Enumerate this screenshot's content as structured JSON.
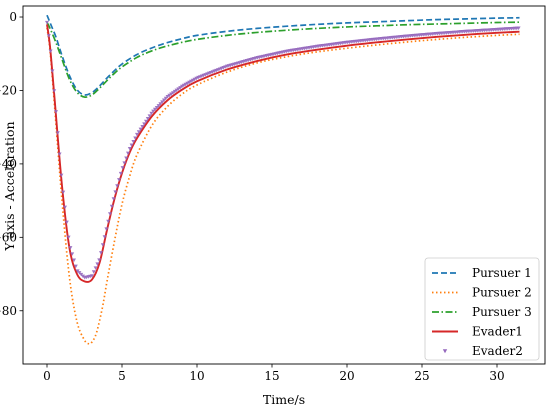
{
  "chart_data": {
    "type": "line",
    "title": "",
    "xlabel": "Time/s",
    "ylabel": "Y axis - Acceleration",
    "xlim": [
      -1.6,
      33.2
    ],
    "ylim": [
      -94.5,
      3
    ],
    "xticks": [
      0,
      5,
      10,
      15,
      20,
      25,
      30
    ],
    "yticks": [
      0,
      -20,
      -40,
      -60,
      -80
    ],
    "xtick_labels": [
      "0",
      "5",
      "10",
      "15",
      "20",
      "25",
      "30"
    ],
    "ytick_labels": [
      "0",
      "−20",
      "−40",
      "−60",
      "−80"
    ],
    "grid": false,
    "legend_position": "lower-right",
    "series": [
      {
        "name": "Pursuer 1",
        "color": "#1f77b4",
        "style": "dashed",
        "x": [
          0,
          0.1,
          0.3,
          0.6,
          1.0,
          1.5,
          2.0,
          2.5,
          3.0,
          3.5,
          4.0,
          4.5,
          5.0,
          6.0,
          7.0,
          8.0,
          9.0,
          10.0,
          12.0,
          14.0,
          16.0,
          18.0,
          20.0,
          22.0,
          24.0,
          26.0,
          28.0,
          30.0,
          31.5
        ],
        "y": [
          0.5,
          -0.5,
          -2.5,
          -5.5,
          -10.5,
          -16.0,
          -19.8,
          -21.2,
          -20.6,
          -18.8,
          -16.6,
          -14.6,
          -12.8,
          -10.2,
          -8.4,
          -7.0,
          -5.9,
          -5.0,
          -3.9,
          -3.1,
          -2.5,
          -2.0,
          -1.6,
          -1.3,
          -1.0,
          -0.7,
          -0.5,
          -0.3,
          -0.2
        ]
      },
      {
        "name": "Pursuer 2",
        "color": "#ff7f0e",
        "style": "dotted",
        "x": [
          0,
          0.2,
          0.5,
          1.0,
          1.5,
          2.0,
          2.5,
          2.8,
          3.0,
          3.3,
          3.7,
          4.0,
          4.5,
          5.0,
          5.5,
          6.0,
          7.0,
          8.0,
          9.0,
          10.0,
          12.0,
          14.0,
          16.0,
          18.0,
          20.0,
          22.0,
          24.0,
          26.0,
          28.0,
          30.0,
          31.5
        ],
        "y": [
          -3.0,
          -9.0,
          -24.0,
          -50.0,
          -71.0,
          -83.0,
          -88.0,
          -89.0,
          -88.5,
          -86.0,
          -79.0,
          -72.0,
          -61.0,
          -51.0,
          -43.5,
          -37.5,
          -29.5,
          -24.5,
          -21.0,
          -18.5,
          -15.0,
          -12.5,
          -10.8,
          -9.5,
          -8.5,
          -7.6,
          -6.8,
          -6.1,
          -5.5,
          -5.0,
          -4.7
        ]
      },
      {
        "name": "Pursuer 3",
        "color": "#2ca02c",
        "style": "dashdot",
        "x": [
          0,
          0.1,
          0.3,
          0.6,
          1.0,
          1.5,
          2.0,
          2.5,
          3.0,
          3.5,
          4.0,
          4.5,
          5.0,
          6.0,
          7.0,
          8.0,
          9.0,
          10.0,
          12.0,
          14.0,
          16.0,
          18.0,
          20.0,
          22.0,
          24.0,
          26.0,
          28.0,
          30.0,
          31.5
        ],
        "y": [
          -1.5,
          -2.2,
          -4.0,
          -7.0,
          -11.5,
          -17.0,
          -20.5,
          -21.8,
          -21.2,
          -19.4,
          -17.3,
          -15.3,
          -13.6,
          -11.0,
          -9.2,
          -7.9,
          -6.9,
          -6.1,
          -5.0,
          -4.2,
          -3.6,
          -3.1,
          -2.7,
          -2.4,
          -2.1,
          -1.9,
          -1.7,
          -1.5,
          -1.4
        ]
      },
      {
        "name": "Evader1",
        "color": "#d62728",
        "style": "solid",
        "x": [
          0,
          0.2,
          0.5,
          1.0,
          1.5,
          2.0,
          2.5,
          3.0,
          3.5,
          4.0,
          4.5,
          5.0,
          5.5,
          6.0,
          7.0,
          8.0,
          9.0,
          10.0,
          12.0,
          14.0,
          16.0,
          18.0,
          20.0,
          22.0,
          24.0,
          26.0,
          28.0,
          30.0,
          31.5
        ],
        "y": [
          -2.0,
          -8.0,
          -22.0,
          -46.0,
          -63.0,
          -70.0,
          -72.0,
          -71.5,
          -67.0,
          -58.0,
          -49.5,
          -42.5,
          -37.0,
          -33.0,
          -27.0,
          -22.8,
          -19.8,
          -17.5,
          -14.3,
          -12.0,
          -10.2,
          -8.9,
          -7.8,
          -6.9,
          -6.1,
          -5.4,
          -4.8,
          -4.3,
          -4.0
        ]
      },
      {
        "name": "Evader2",
        "color": "#9467bd",
        "style": "markers",
        "x": [
          0,
          0.2,
          0.5,
          1.0,
          1.5,
          2.0,
          2.5,
          3.0,
          3.5,
          4.0,
          4.5,
          5.0,
          5.5,
          6.0,
          7.0,
          8.0,
          9.0,
          10.0,
          12.0,
          14.0,
          16.0,
          18.0,
          20.0,
          22.0,
          24.0,
          26.0,
          28.0,
          30.0,
          31.5
        ],
        "y": [
          -1.5,
          -7.5,
          -21.0,
          -45.0,
          -62.0,
          -69.0,
          -71.0,
          -70.5,
          -66.0,
          -57.0,
          -48.5,
          -41.5,
          -36.0,
          -32.0,
          -26.0,
          -21.8,
          -18.9,
          -16.6,
          -13.4,
          -11.1,
          -9.3,
          -8.0,
          -6.9,
          -6.0,
          -5.2,
          -4.5,
          -3.9,
          -3.4,
          -3.0
        ]
      }
    ]
  }
}
